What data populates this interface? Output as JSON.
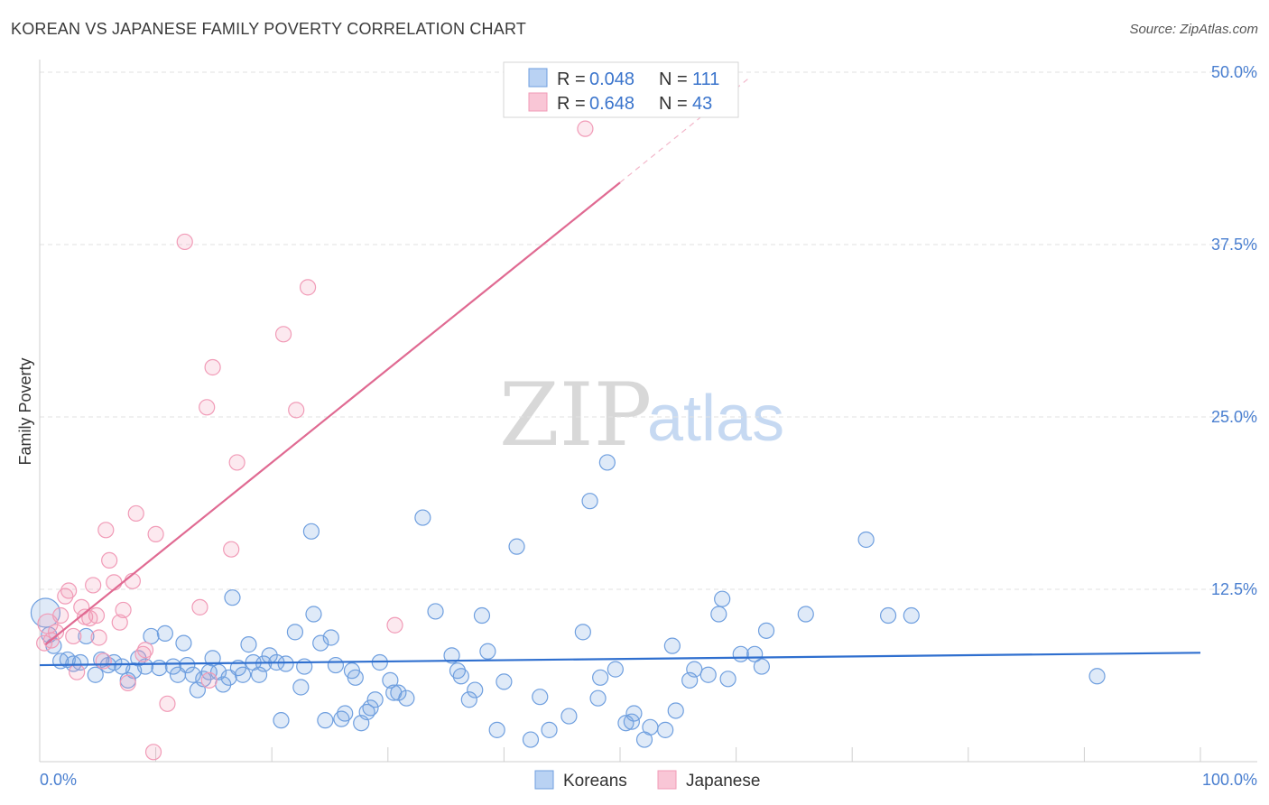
{
  "header": {
    "title": "KOREAN VS JAPANESE FAMILY POVERTY CORRELATION CHART",
    "source": "Source: ZipAtlas.com"
  },
  "watermark": {
    "zip": "ZIP",
    "atlas": "atlas"
  },
  "chart_data": {
    "type": "scatter",
    "title": "KOREAN VS JAPANESE FAMILY POVERTY CORRELATION CHART",
    "xlabel": "",
    "ylabel": "Family Poverty",
    "xlim": [
      0,
      100
    ],
    "ylim": [
      0,
      50
    ],
    "x_tick_labels": [
      "0.0%",
      "100.0%"
    ],
    "y_ticks": [
      12.5,
      25.0,
      37.5,
      50.0
    ],
    "y_tick_labels": [
      "12.5%",
      "25.0%",
      "37.5%",
      "50.0%"
    ],
    "grid": "horizontal dashed",
    "legend": {
      "placement": "top-center",
      "entries": [
        {
          "r_label": "R =",
          "r_value": "0.048",
          "n_label": "N =",
          "n_value": "111"
        },
        {
          "r_label": "R =",
          "r_value": "0.648",
          "n_label": "N =",
          "n_value": "43"
        }
      ]
    },
    "bottom_legend": [
      "Koreans",
      "Japanese"
    ],
    "colors": {
      "koreans": "#6f9fdf",
      "koreans_line": "#2f6fcf",
      "japanese": "#f19bb7",
      "japanese_line": "#e06a92"
    },
    "series": [
      {
        "name": "Koreans",
        "trend": {
          "x": [
            0,
            100
          ],
          "y": [
            7.0,
            7.9
          ]
        },
        "points": [
          [
            0.5,
            10.8
          ],
          [
            0.8,
            9.2
          ],
          [
            1.2,
            8.4
          ],
          [
            1.8,
            7.3
          ],
          [
            2.4,
            7.4
          ],
          [
            2.9,
            7.1
          ],
          [
            3.5,
            7.2
          ],
          [
            4.0,
            9.1
          ],
          [
            4.8,
            6.3
          ],
          [
            5.3,
            7.4
          ],
          [
            5.9,
            7.0
          ],
          [
            6.4,
            7.2
          ],
          [
            7.1,
            6.9
          ],
          [
            7.6,
            5.9
          ],
          [
            8.1,
            6.6
          ],
          [
            8.5,
            7.5
          ],
          [
            9.1,
            6.9
          ],
          [
            9.6,
            9.1
          ],
          [
            10.3,
            6.8
          ],
          [
            10.8,
            9.3
          ],
          [
            11.5,
            6.9
          ],
          [
            11.9,
            6.3
          ],
          [
            12.4,
            8.6
          ],
          [
            12.7,
            7.0
          ],
          [
            13.2,
            6.3
          ],
          [
            13.6,
            5.2
          ],
          [
            14.1,
            6.0
          ],
          [
            14.6,
            6.5
          ],
          [
            14.9,
            7.5
          ],
          [
            15.4,
            6.5
          ],
          [
            15.8,
            5.6
          ],
          [
            16.3,
            6.1
          ],
          [
            16.6,
            11.9
          ],
          [
            17.1,
            6.8
          ],
          [
            17.5,
            6.3
          ],
          [
            18.0,
            8.5
          ],
          [
            18.4,
            7.2
          ],
          [
            18.9,
            6.3
          ],
          [
            19.3,
            7.1
          ],
          [
            19.8,
            7.7
          ],
          [
            20.4,
            7.2
          ],
          [
            20.8,
            3.0
          ],
          [
            21.2,
            7.1
          ],
          [
            22.0,
            9.4
          ],
          [
            22.5,
            5.4
          ],
          [
            22.8,
            6.9
          ],
          [
            23.4,
            16.7
          ],
          [
            23.6,
            10.7
          ],
          [
            24.2,
            8.6
          ],
          [
            24.6,
            3.0
          ],
          [
            25.1,
            9.0
          ],
          [
            25.5,
            7.0
          ],
          [
            26.0,
            3.1
          ],
          [
            26.3,
            3.5
          ],
          [
            26.9,
            6.6
          ],
          [
            27.2,
            6.1
          ],
          [
            27.7,
            2.8
          ],
          [
            28.2,
            3.6
          ],
          [
            28.5,
            3.9
          ],
          [
            28.9,
            4.5
          ],
          [
            29.3,
            7.2
          ],
          [
            30.2,
            5.9
          ],
          [
            30.5,
            5.0
          ],
          [
            30.9,
            5.0
          ],
          [
            31.6,
            4.6
          ],
          [
            33.0,
            17.7
          ],
          [
            34.1,
            10.9
          ],
          [
            35.5,
            7.7
          ],
          [
            36.0,
            6.6
          ],
          [
            36.3,
            6.2
          ],
          [
            37.0,
            4.5
          ],
          [
            37.5,
            5.2
          ],
          [
            38.1,
            10.6
          ],
          [
            38.6,
            8.0
          ],
          [
            39.4,
            2.3
          ],
          [
            40.0,
            5.8
          ],
          [
            41.1,
            15.6
          ],
          [
            42.3,
            1.6
          ],
          [
            43.1,
            4.7
          ],
          [
            43.9,
            2.3
          ],
          [
            45.6,
            3.3
          ],
          [
            46.8,
            9.4
          ],
          [
            47.4,
            18.9
          ],
          [
            48.1,
            4.6
          ],
          [
            48.3,
            6.1
          ],
          [
            48.9,
            21.7
          ],
          [
            49.6,
            6.7
          ],
          [
            50.5,
            2.8
          ],
          [
            51.0,
            2.9
          ],
          [
            51.2,
            3.5
          ],
          [
            52.1,
            1.6
          ],
          [
            52.6,
            2.5
          ],
          [
            53.9,
            2.3
          ],
          [
            54.5,
            8.4
          ],
          [
            54.8,
            3.7
          ],
          [
            56.0,
            5.9
          ],
          [
            56.4,
            6.7
          ],
          [
            57.6,
            6.3
          ],
          [
            58.5,
            10.7
          ],
          [
            58.8,
            11.8
          ],
          [
            59.3,
            6.0
          ],
          [
            60.4,
            7.8
          ],
          [
            61.6,
            7.8
          ],
          [
            62.2,
            6.9
          ],
          [
            62.6,
            9.5
          ],
          [
            66.0,
            10.7
          ],
          [
            71.2,
            16.1
          ],
          [
            73.1,
            10.6
          ],
          [
            75.1,
            10.6
          ],
          [
            91.1,
            6.2
          ]
        ]
      },
      {
        "name": "Japanese",
        "trend": {
          "x": [
            0.5,
            50.0
          ],
          "y": [
            8.5,
            42.0
          ],
          "dashed_to": [
            61.0,
            49.5
          ]
        },
        "points": [
          [
            0.4,
            8.6
          ],
          [
            0.7,
            10.0
          ],
          [
            1.0,
            8.8
          ],
          [
            1.4,
            9.4
          ],
          [
            1.8,
            10.6
          ],
          [
            2.2,
            12.0
          ],
          [
            2.5,
            12.4
          ],
          [
            2.9,
            9.1
          ],
          [
            3.2,
            6.5
          ],
          [
            3.6,
            11.2
          ],
          [
            3.9,
            10.5
          ],
          [
            4.3,
            10.4
          ],
          [
            4.6,
            12.8
          ],
          [
            4.9,
            10.6
          ],
          [
            5.1,
            9.0
          ],
          [
            5.5,
            7.3
          ],
          [
            5.7,
            16.8
          ],
          [
            6.0,
            14.6
          ],
          [
            6.4,
            13.0
          ],
          [
            6.9,
            10.1
          ],
          [
            7.2,
            11.0
          ],
          [
            7.6,
            5.7
          ],
          [
            8.0,
            13.1
          ],
          [
            8.3,
            18.0
          ],
          [
            8.9,
            7.8
          ],
          [
            9.1,
            8.1
          ],
          [
            9.8,
            0.7
          ],
          [
            10.0,
            16.5
          ],
          [
            11.0,
            4.2
          ],
          [
            12.5,
            37.7
          ],
          [
            13.8,
            11.2
          ],
          [
            14.4,
            25.7
          ],
          [
            14.6,
            5.9
          ],
          [
            14.9,
            28.6
          ],
          [
            16.5,
            15.4
          ],
          [
            17.0,
            21.7
          ],
          [
            21.0,
            31.0
          ],
          [
            22.1,
            25.5
          ],
          [
            23.1,
            34.4
          ],
          [
            30.6,
            9.9
          ],
          [
            47.0,
            45.9
          ]
        ]
      }
    ]
  }
}
